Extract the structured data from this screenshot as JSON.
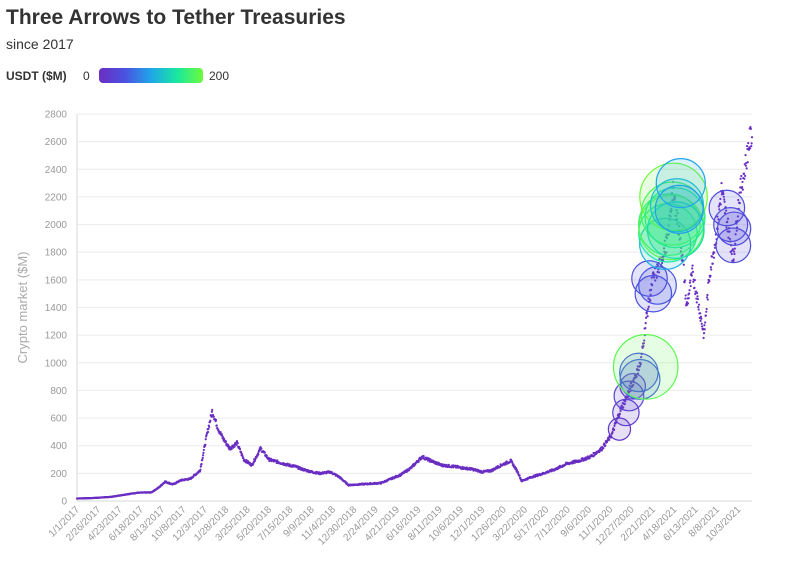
{
  "header": {
    "title": "Three Arrows to Tether Treasuries",
    "subtitle": "since 2017"
  },
  "legend": {
    "title": "USDT ($M)",
    "min_label": "0",
    "max_label": "200",
    "colors": [
      "#6a2ec2",
      "#4b52e0",
      "#1fa6ea",
      "#19e8a0",
      "#6dfb3c"
    ]
  },
  "chart_data": {
    "type": "scatter",
    "title": "Three Arrows to Tether Treasuries",
    "subtitle": "since 2017",
    "xlabel": "",
    "ylabel": "Crypto market ($M)",
    "ylim": [
      0,
      2800
    ],
    "yticks": [
      0,
      200,
      400,
      600,
      800,
      1000,
      1200,
      1400,
      1600,
      1800,
      2000,
      2200,
      2400,
      2600,
      2800
    ],
    "x_tick_labels": [
      "1/1/2017",
      "2/26/2017",
      "4/23/2017",
      "6/18/2017",
      "8/13/2017",
      "10/8/2017",
      "12/3/2017",
      "1/28/2018",
      "3/25/2018",
      "5/20/2018",
      "7/15/2018",
      "9/9/2018",
      "11/4/2018",
      "12/30/2018",
      "2/24/2019",
      "4/21/2019",
      "6/16/2019",
      "8/11/2019",
      "10/6/2019",
      "12/1/2019",
      "1/26/2020",
      "3/22/2020",
      "5/17/2020",
      "7/12/2020",
      "9/6/2020",
      "11/1/2020",
      "12/27/2020",
      "2/21/2021",
      "4/18/2021",
      "6/13/2021",
      "8/8/2021",
      "10/3/2021"
    ],
    "grid": true,
    "legend": "top-left",
    "series": [
      {
        "type": "scatter",
        "color": "#6a2ec2",
        "x": [
          "2017-01-01",
          "2017-02-15",
          "2017-04-01",
          "2017-05-15",
          "2017-06-10",
          "2017-07-15",
          "2017-08-05",
          "2017-08-20",
          "2017-09-10",
          "2017-10-01",
          "2017-10-25",
          "2017-11-20",
          "2017-12-08",
          "2017-12-22",
          "2018-01-07",
          "2018-01-20",
          "2018-02-06",
          "2018-02-25",
          "2018-03-15",
          "2018-04-05",
          "2018-04-28",
          "2018-05-20",
          "2018-06-15",
          "2018-07-10",
          "2018-07-28",
          "2018-08-15",
          "2018-09-10",
          "2018-10-01",
          "2018-10-28",
          "2018-11-20",
          "2018-12-15",
          "2019-01-10",
          "2019-02-10",
          "2019-03-10",
          "2019-04-05",
          "2019-05-01",
          "2019-05-28",
          "2019-06-26",
          "2019-07-20",
          "2019-08-15",
          "2019-09-15",
          "2019-10-10",
          "2019-11-05",
          "2019-12-01",
          "2019-12-25",
          "2020-01-20",
          "2020-02-14",
          "2020-03-05",
          "2020-03-13",
          "2020-04-10",
          "2020-05-10",
          "2020-06-10",
          "2020-07-10",
          "2020-08-10",
          "2020-09-10",
          "2020-10-10",
          "2020-11-05",
          "2020-11-25",
          "2020-12-15",
          "2021-01-05",
          "2021-01-20",
          "2021-02-05",
          "2021-02-20",
          "2021-03-10",
          "2021-04-01",
          "2021-04-14",
          "2021-05-01",
          "2021-05-12",
          "2021-05-20",
          "2021-06-05",
          "2021-06-22",
          "2021-07-05",
          "2021-07-20",
          "2021-08-05",
          "2021-08-20",
          "2021-09-05",
          "2021-09-20",
          "2021-10-05",
          "2021-10-20",
          "2021-11-01",
          "2021-11-08"
        ],
        "y": [
          18,
          22,
          30,
          50,
          60,
          62,
          100,
          140,
          120,
          150,
          160,
          220,
          480,
          650,
          520,
          450,
          380,
          420,
          300,
          260,
          380,
          300,
          280,
          260,
          250,
          230,
          210,
          200,
          210,
          175,
          115,
          120,
          125,
          130,
          160,
          190,
          240,
          320,
          290,
          260,
          250,
          240,
          230,
          210,
          220,
          260,
          290,
          200,
          145,
          175,
          200,
          230,
          270,
          290,
          320,
          380,
          480,
          640,
          760,
          900,
          1000,
          1350,
          1600,
          1700,
          1900,
          2250,
          1950,
          1700,
          1400,
          1650,
          1400,
          1200,
          1650,
          1900,
          2250,
          2000,
          1750,
          2200,
          2400,
          2600,
          2650
        ]
      }
    ],
    "bubbles": {
      "size_variable": "USDT ($M)",
      "x": [
        "2020-11-25",
        "2020-12-12",
        "2020-12-20",
        "2020-12-30",
        "2021-01-15",
        "2021-01-18",
        "2021-02-02",
        "2021-02-12",
        "2021-02-22",
        "2021-03-05",
        "2021-03-25",
        "2021-04-01",
        "2021-04-05",
        "2021-04-10",
        "2021-04-14",
        "2021-04-16",
        "2021-04-20",
        "2021-04-22",
        "2021-04-25",
        "2021-05-01",
        "2021-05-05",
        "2021-09-03",
        "2021-09-13",
        "2021-09-20",
        "2021-09-22"
      ],
      "y": [
        520,
        640,
        760,
        830,
        930,
        880,
        970,
        1610,
        1500,
        1560,
        1860,
        1940,
        2000,
        1980,
        2080,
        2200,
        2050,
        1960,
        2140,
        2110,
        2300,
        2120,
        2000,
        1850,
        1970
      ],
      "usdt": [
        12,
        20,
        28,
        18,
        55,
        60,
        190,
        45,
        48,
        52,
        110,
        150,
        170,
        190,
        180,
        210,
        160,
        140,
        120,
        95,
        100,
        45,
        40,
        42,
        38
      ]
    }
  }
}
